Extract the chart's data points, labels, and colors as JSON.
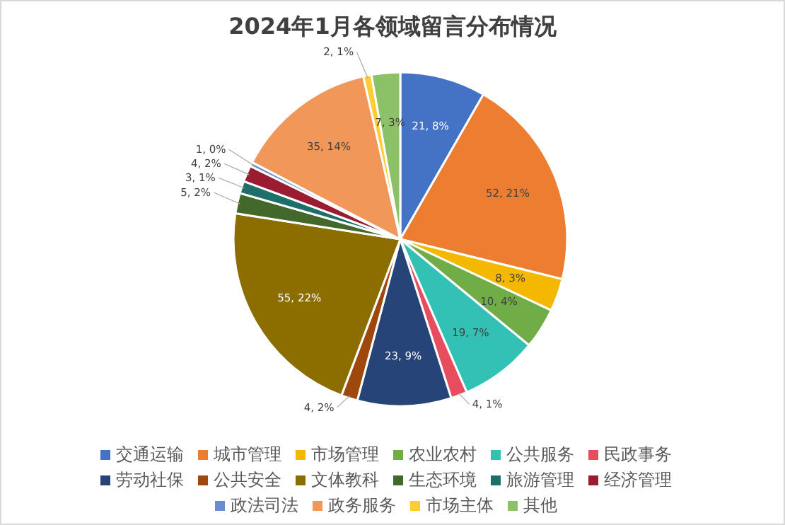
{
  "chart_data": {
    "type": "pie",
    "title": "2024年1月各领域留言分布情况",
    "categories": [
      "交通运输",
      "城市管理",
      "市场管理",
      "农业农村",
      "公共服务",
      "民政事务",
      "劳动社保",
      "公共安全",
      "文体教科",
      "生态环境",
      "旅游管理",
      "经济管理",
      "政法司法",
      "政务服务",
      "市场主体",
      "其他"
    ],
    "values": [
      21,
      52,
      8,
      10,
      19,
      4,
      23,
      4,
      55,
      5,
      3,
      4,
      1,
      35,
      2,
      7
    ],
    "value_labels": [
      "21, 8%",
      "52, 21%",
      "8, 3%",
      "10, 4%",
      "19, 7%",
      "4, 1%",
      "23, 9%",
      "4, 2%",
      "55, 22%",
      "5, 2%",
      "3, 1%",
      "4, 2%",
      "1, 0%",
      "35, 14%",
      "2, 1%",
      "7, 3%"
    ],
    "colors": [
      "#4472c4",
      "#ed7d31",
      "#f5b800",
      "#70ad47",
      "#33c1b5",
      "#e84c5f",
      "#264478",
      "#9e480e",
      "#8c6d00",
      "#43682b",
      "#1e6f6a",
      "#9b1b30",
      "#698ed0",
      "#f1975a",
      "#ffcd33",
      "#8cc168"
    ],
    "legend": "bottom"
  }
}
